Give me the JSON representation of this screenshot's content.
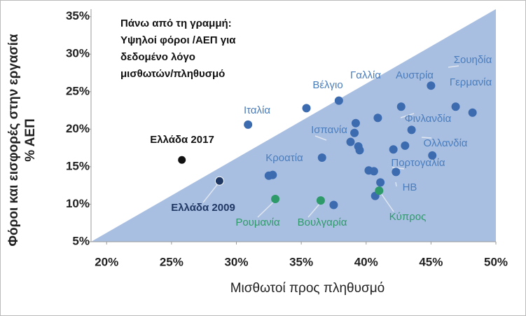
{
  "chart_data": {
    "type": "scatter",
    "annotation": [
      "Πάνω από τη γραμμή:",
      "Υψηλοί φόροι /ΑΕΠ για",
      "δεδομένο λόγο",
      "μισθωτών/πληθυσμό"
    ],
    "x_label": "Μισθωτοί προς πληθυσμό",
    "y_label": [
      "Φόροι και εισφορές στην εργασία",
      "% ΑΕΠ"
    ],
    "xlim": [
      18.8,
      50
    ],
    "ylim": [
      5,
      36
    ],
    "xticks": [
      {
        "value": 20,
        "label": "20%"
      },
      {
        "value": 25,
        "label": "25%"
      },
      {
        "value": 30,
        "label": "30%"
      },
      {
        "value": 35,
        "label": "35%"
      },
      {
        "value": 40,
        "label": "40%"
      },
      {
        "value": 45,
        "label": "45%"
      },
      {
        "value": 50,
        "label": "50%"
      }
    ],
    "yticks": [
      {
        "value": 5,
        "label": "5%"
      },
      {
        "value": 10,
        "label": "10%"
      },
      {
        "value": 15,
        "label": "15%"
      },
      {
        "value": 20,
        "label": "20%"
      },
      {
        "value": 25,
        "label": "25%"
      },
      {
        "value": 30,
        "label": "30%"
      },
      {
        "value": 35,
        "label": "35%"
      }
    ],
    "series": [
      {
        "color": "#3c6bb0",
        "label_color": "#4a7dbd",
        "x": [
          30.9,
          35.4,
          37.9,
          42.7,
          45.0,
          48.2,
          40.9,
          36.6,
          43.5,
          32.8,
          40.6,
          41.1,
          46.9,
          39.2,
          39.1,
          38.8,
          39.4,
          39.5,
          43.0,
          42.1,
          45.1,
          32.5,
          40.2,
          42.3,
          40.7,
          37.5
        ],
        "values": [
          20.6,
          22.8,
          23.8,
          23.0,
          25.8,
          22.2,
          21.5,
          16.2,
          19.9,
          13.9,
          14.4,
          12.9,
          23.0,
          20.8,
          19.5,
          18.3,
          17.7,
          17.2,
          17.8,
          17.3,
          16.5,
          13.8,
          14.5,
          14.3,
          11.1,
          9.9
        ],
        "labels": [
          "Ιταλία",
          "Βέλγιο",
          "Γαλλία",
          "Αυστρία",
          "Σουηδία",
          "Γερμανία",
          "Φινλανδία",
          "Ισπανία",
          "Ολλανδία",
          "Κροατία",
          "Πορτογαλία",
          "ΗΒ",
          null,
          null,
          null,
          null,
          null,
          null,
          null,
          null,
          null,
          null,
          null,
          null,
          null,
          null
        ]
      },
      {
        "color": "#2e9a6a",
        "label_color": "#2e9a6a",
        "x": [
          33.0,
          36.5,
          41.0
        ],
        "values": [
          10.7,
          10.5,
          11.8
        ],
        "labels": [
          "Ρουμανία",
          "Βουλγαρία",
          "Κύπρος"
        ]
      },
      {
        "color": "#111111",
        "label_color": "#111111",
        "x": [
          25.8
        ],
        "values": [
          15.9
        ],
        "labels": [
          "Ελλάδα 2017"
        ]
      },
      {
        "color": "#1f3864",
        "label_color": "#1f3864",
        "x": [
          28.7
        ],
        "values": [
          13.1
        ],
        "labels": [
          "Ελλάδα 2009"
        ]
      }
    ]
  }
}
